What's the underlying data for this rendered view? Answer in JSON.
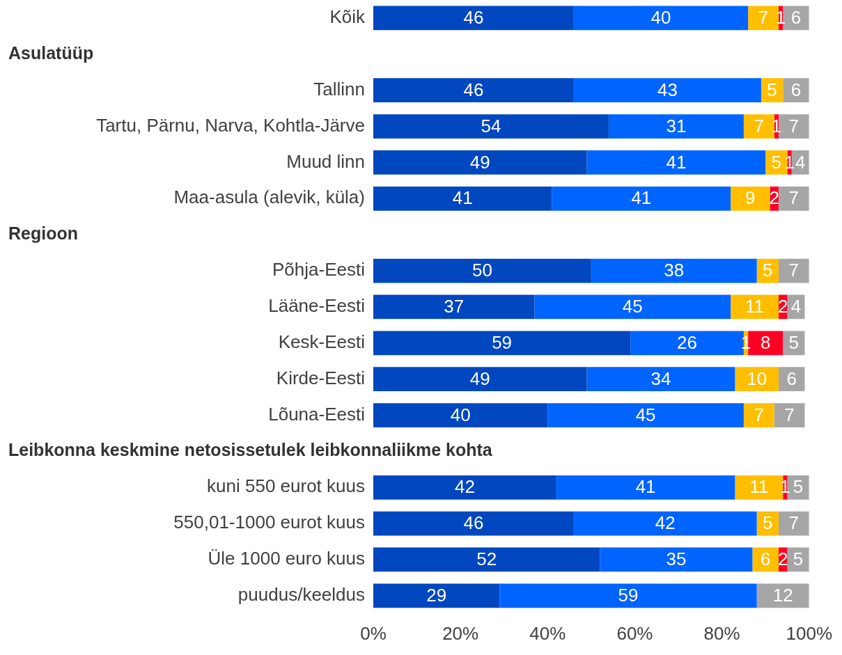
{
  "chart_data": {
    "type": "bar",
    "orientation": "horizontal",
    "stacked": true,
    "data_labels": true,
    "grid": false,
    "legend": false,
    "annotations": [
      "Asulatüüp",
      "Regioon",
      "Leibkonna keskmine netosissetulek leibkonnaliikme kohta"
    ],
    "categories": [
      "Kõik",
      null,
      "Tallinn",
      "Tartu, Pärnu, Narva, Kohtla-Järve",
      "Muud linn",
      "Maa-asula (alevik, küla)",
      null,
      "Põhja-Eesti",
      "Lääne-Eesti",
      "Kesk-Eesti",
      "Kirde-Eesti",
      "Lõuna-Eesti",
      null,
      "kuni 550 eurot kuus",
      "550,01-1000 eurot kuus",
      "Üle 1000 euro kuus",
      "puudus/keeldus"
    ],
    "series": [
      {
        "color": "#0047c0",
        "values": [
          46,
          null,
          46,
          54,
          49,
          41,
          null,
          50,
          37,
          59,
          49,
          40,
          null,
          42,
          46,
          52,
          29
        ]
      },
      {
        "color": "#0064ff",
        "values": [
          40,
          null,
          43,
          31,
          41,
          41,
          null,
          38,
          45,
          26,
          34,
          45,
          null,
          41,
          42,
          35,
          59
        ]
      },
      {
        "color": "#ffbf00",
        "values": [
          7,
          null,
          5,
          7,
          5,
          9,
          null,
          5,
          11,
          1,
          10,
          7,
          null,
          11,
          5,
          6,
          null
        ]
      },
      {
        "color": "#ff0025",
        "values": [
          1,
          null,
          null,
          1,
          1,
          2,
          null,
          null,
          2,
          8,
          null,
          null,
          null,
          1,
          null,
          2,
          null
        ]
      },
      {
        "color": "#a6a6a6",
        "values": [
          6,
          null,
          6,
          7,
          4,
          7,
          null,
          7,
          4,
          5,
          6,
          7,
          null,
          5,
          7,
          5,
          12
        ]
      }
    ],
    "xlim": [
      0,
      100
    ],
    "xticks": [
      {
        "value": 0,
        "label": "0%"
      },
      {
        "value": 20,
        "label": "20%"
      },
      {
        "value": 40,
        "label": "40%"
      },
      {
        "value": 60,
        "label": "60%"
      },
      {
        "value": 80,
        "label": "80%"
      },
      {
        "value": 100,
        "label": "100%"
      }
    ]
  }
}
